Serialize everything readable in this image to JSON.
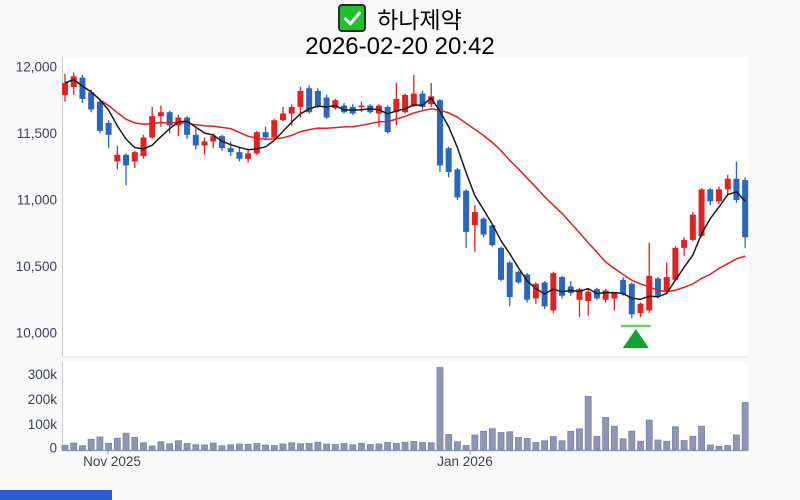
{
  "header": {
    "title": "하나제약",
    "datetime": "2026-02-20 20:42"
  },
  "axes": {
    "price_labels": [
      "12,000",
      "11,500",
      "11,000",
      "10,500",
      "10,000"
    ],
    "volume_labels": [
      "300k",
      "200k",
      "100k",
      "0"
    ],
    "x_labels": [
      "Nov 2025",
      "Jan 2026"
    ]
  },
  "colors": {
    "up": "#e12222",
    "down": "#2b66bd",
    "ma_short": "#1a1a1a",
    "ma_long": "#e01f1f",
    "volume_fill": "#8d96b4",
    "volume_stroke": "#7b84a3",
    "axis_text": "#3a4254",
    "checkbox_green": "#1fc02e",
    "marker_green": "#12a232",
    "marker_line_green": "#6fcf6f",
    "bottom_bar_blue": "#2a5ad0"
  },
  "chart_data": {
    "type": "candlestick+volume",
    "title": "하나제약",
    "timestamp": "2026-02-20 20:42",
    "legend_position": "none",
    "grid": false,
    "price_axis": {
      "min": 9820,
      "max": 12070,
      "ticks": [
        12000,
        11500,
        11000,
        10500,
        10000
      ]
    },
    "volume_axis": {
      "min": 0,
      "max": 348000,
      "ticks": [
        300000,
        200000,
        100000,
        0
      ]
    },
    "x_axis_ticks": [
      "Nov 2025",
      "Jan 2026"
    ],
    "up_color_meaning": "price up (red, Korean convention)",
    "down_color_meaning": "price down (blue)",
    "overlays": [
      {
        "name": "short-moving-average",
        "window": 5,
        "color": "#1a1a1a"
      },
      {
        "name": "long-moving-average",
        "window": 20,
        "color": "#e01f1f"
      }
    ],
    "marker": {
      "type": "buy-triangle",
      "candle_index": 66,
      "price_level": 10060
    },
    "candle_fields": [
      "open",
      "high",
      "low",
      "close",
      "volume"
    ],
    "candles": [
      [
        11790,
        11950,
        11740,
        11880,
        19000
      ],
      [
        11850,
        11960,
        11790,
        11930,
        28000
      ],
      [
        11920,
        11940,
        11730,
        11760,
        17000
      ],
      [
        11810,
        11830,
        11660,
        11680,
        43000
      ],
      [
        11740,
        11750,
        11500,
        11520,
        52000
      ],
      [
        11580,
        11600,
        11390,
        11490,
        27000
      ],
      [
        11290,
        11410,
        11230,
        11340,
        47000
      ],
      [
        11340,
        11350,
        11110,
        11260,
        67000
      ],
      [
        11290,
        11370,
        11240,
        11360,
        50000
      ],
      [
        11330,
        11490,
        11310,
        11470,
        29000
      ],
      [
        11470,
        11700,
        11460,
        11630,
        16000
      ],
      [
        11630,
        11710,
        11550,
        11660,
        33000
      ],
      [
        11660,
        11670,
        11500,
        11560,
        25000
      ],
      [
        11560,
        11640,
        11480,
        11620,
        37000
      ],
      [
        11620,
        11630,
        11460,
        11490,
        26000
      ],
      [
        11490,
        11540,
        11380,
        11410,
        21000
      ],
      [
        11410,
        11470,
        11340,
        11440,
        20000
      ],
      [
        11440,
        11500,
        11390,
        11480,
        28000
      ],
      [
        11480,
        11490,
        11370,
        11390,
        17000
      ],
      [
        11390,
        11440,
        11330,
        11360,
        21000
      ],
      [
        11360,
        11400,
        11290,
        11310,
        24000
      ],
      [
        11310,
        11380,
        11280,
        11350,
        23000
      ],
      [
        11350,
        11520,
        11340,
        11510,
        26000
      ],
      [
        11510,
        11550,
        11450,
        11470,
        20000
      ],
      [
        11470,
        11610,
        11460,
        11600,
        18000
      ],
      [
        11600,
        11700,
        11590,
        11650,
        24000
      ],
      [
        11650,
        11720,
        11560,
        11700,
        29000
      ],
      [
        11700,
        11850,
        11620,
        11820,
        25000
      ],
      [
        11840,
        11860,
        11650,
        11660,
        26000
      ],
      [
        11820,
        11840,
        11690,
        11700,
        31000
      ],
      [
        11770,
        11790,
        11610,
        11620,
        24000
      ],
      [
        11690,
        11760,
        11680,
        11750,
        22000
      ],
      [
        11710,
        11730,
        11650,
        11660,
        26000
      ],
      [
        11700,
        11720,
        11640,
        11650,
        21000
      ],
      [
        11700,
        11740,
        11660,
        11710,
        27000
      ],
      [
        11710,
        11720,
        11650,
        11660,
        22000
      ],
      [
        11650,
        11720,
        11550,
        11710,
        24000
      ],
      [
        11700,
        11710,
        11500,
        11510,
        30000
      ],
      [
        11660,
        11880,
        11560,
        11760,
        26000
      ],
      [
        11660,
        11800,
        11650,
        11790,
        31000
      ],
      [
        11710,
        11940,
        11700,
        11800,
        34000
      ],
      [
        11800,
        11820,
        11680,
        11700,
        30000
      ],
      [
        11720,
        11880,
        11700,
        11780,
        29000
      ],
      [
        11750,
        11760,
        11210,
        11260,
        330000
      ],
      [
        11390,
        11400,
        11170,
        11210,
        62000
      ],
      [
        11230,
        11240,
        11000,
        11020,
        33000
      ],
      [
        11070,
        11080,
        10640,
        10760,
        18000
      ],
      [
        10810,
        10960,
        10610,
        10910,
        60000
      ],
      [
        10860,
        10870,
        10720,
        10740,
        75000
      ],
      [
        10810,
        10820,
        10650,
        10660,
        85000
      ],
      [
        10640,
        10650,
        10390,
        10400,
        70000
      ],
      [
        10530,
        10540,
        10200,
        10270,
        73000
      ],
      [
        10460,
        10470,
        10370,
        10380,
        50000
      ],
      [
        10440,
        10450,
        10230,
        10250,
        46000
      ],
      [
        10260,
        10380,
        10220,
        10370,
        30000
      ],
      [
        10380,
        10390,
        10180,
        10200,
        37000
      ],
      [
        10170,
        10460,
        10150,
        10450,
        54000
      ],
      [
        10420,
        10430,
        10260,
        10280,
        37000
      ],
      [
        10350,
        10390,
        10280,
        10300,
        75000
      ],
      [
        10250,
        10340,
        10120,
        10330,
        85000
      ],
      [
        10240,
        10330,
        10130,
        10310,
        215000
      ],
      [
        10330,
        10340,
        10250,
        10260,
        55000
      ],
      [
        10250,
        10330,
        10230,
        10320,
        130000
      ],
      [
        10260,
        10310,
        10170,
        10300,
        95000
      ],
      [
        10400,
        10420,
        10280,
        10290,
        45000
      ],
      [
        10370,
        10380,
        10110,
        10140,
        75000
      ],
      [
        10150,
        10230,
        10120,
        10220,
        35000
      ],
      [
        10170,
        10680,
        10150,
        10430,
        120000
      ],
      [
        10410,
        10420,
        10260,
        10280,
        40000
      ],
      [
        10310,
        10530,
        10300,
        10420,
        35000
      ],
      [
        10400,
        10650,
        10390,
        10640,
        93000
      ],
      [
        10640,
        10720,
        10580,
        10700,
        38000
      ],
      [
        10700,
        10910,
        10690,
        10890,
        55000
      ],
      [
        10730,
        11090,
        10720,
        11080,
        95000
      ],
      [
        11080,
        11090,
        10960,
        10990,
        20000
      ],
      [
        10990,
        11100,
        10970,
        11080,
        15000
      ],
      [
        11080,
        11190,
        11040,
        11160,
        18000
      ],
      [
        11160,
        11290,
        10980,
        11000,
        60000
      ],
      [
        11150,
        11170,
        10640,
        10720,
        190000
      ]
    ]
  }
}
